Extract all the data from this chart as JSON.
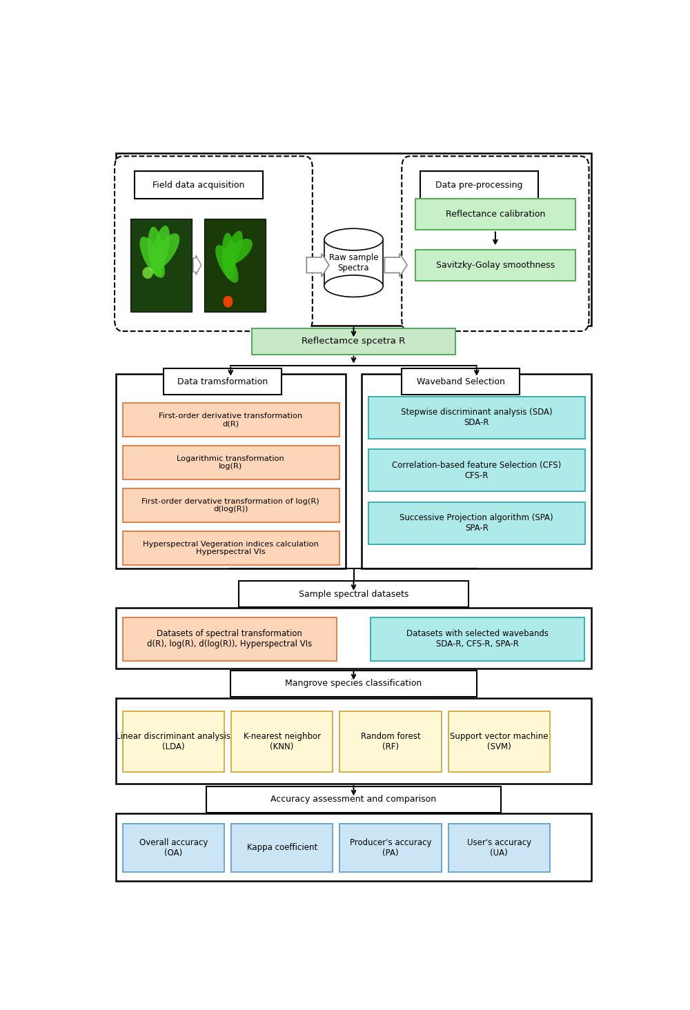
{
  "fig_width": 10.0,
  "fig_height": 14.64,
  "bg_color": "#ffffff",
  "section1": {
    "field_label": "Field data acquisition",
    "preproc_label": "Data pre-processing",
    "raw_label": "Raw sample\nSpectra",
    "reflectance_cal": "Reflectance calibration",
    "savitzky": "Savitzky-Golay smoothness",
    "green_fill": "#c8f0c8",
    "green_border": "#5aaa5a"
  },
  "reflectance_box": {
    "label": "Reflectamce spcetra R",
    "fill": "#c8e8c8",
    "border": "#5aaa5a"
  },
  "section2": {
    "left_label": "Data tramsformation",
    "right_label": "Waveband Selection",
    "left_boxes": [
      "First-order derivative transformation\nd(R)",
      "Logarithmic transformation\nlog(R)",
      "First-order dervative transformation of log(R)\nd(log(R))",
      "Hyperspectral Vegeration indices calculation\nHyperspectral VIs"
    ],
    "right_boxes": [
      "Stepwise discriminant analysis (SDA)\nSDA-R",
      "Correlation-based feature Selection (CFS)\nCFS-R",
      "Successive Projection algorithm (SPA)\nSPA-R"
    ],
    "salmon_fill": "#fdd5b8",
    "salmon_border": "#e07840",
    "cyan_fill": "#aeeaea",
    "cyan_border": "#30a8a8"
  },
  "section3": {
    "label": "Sample spectral datasets",
    "left_box_label": "Datasets of spectral transformation\nd(R), log(R), d(log(R)), Hyperspectral VIs",
    "right_box_label": "Datasets with selected wavebands\nSDA-R, CFS-R, SPA-R",
    "salmon_fill": "#fdd5b8",
    "salmon_border": "#e07840",
    "cyan_fill": "#aeeaea",
    "cyan_border": "#30a8a8"
  },
  "section4": {
    "label": "Mangrove species classification",
    "boxes": [
      "Linear discriminant analysis\n(LDA)",
      "K-nearest neighbor\n(KNN)",
      "Random forest\n(RF)",
      "Support vector machine\n(SVM)"
    ],
    "fill": "#fef9d4",
    "border": "#d4a838"
  },
  "section5": {
    "label": "Accuracy assessment and comparison",
    "boxes": [
      "Overall accuracy\n(OA)",
      "Kappa coefficient",
      "Producer's accuracy\n(PA)",
      "User's accuracy\n(UA)"
    ],
    "fill": "#cce5f5",
    "border": "#60a0d0"
  }
}
